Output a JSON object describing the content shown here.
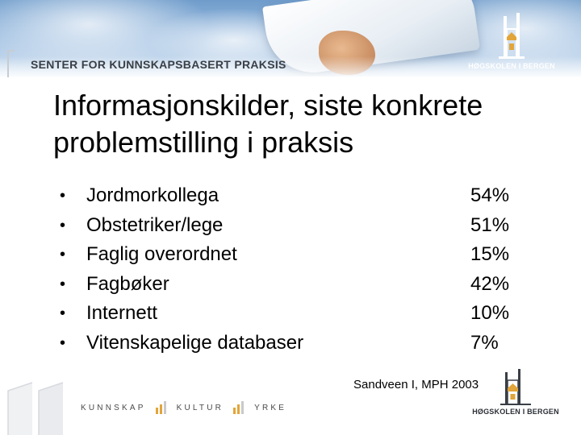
{
  "header": {
    "center_name": "SENTER FOR KUNNSKAPSBASERT PRAKSIS",
    "institution": "HØGSKOLEN I BERGEN",
    "logo_icon": "hib-building-icon"
  },
  "slide": {
    "title_line1": "Informasjonskilder, siste konkrete",
    "title_line2": "problemstilling i praksis",
    "items": [
      {
        "bullet": "•",
        "label": "Jordmorkollega",
        "value": "54%"
      },
      {
        "bullet": "•",
        "label": "Obstetriker/lege",
        "value": "51%"
      },
      {
        "bullet": "•",
        "label": "Faglig overordnet",
        "value": "15%"
      },
      {
        "bullet": "•",
        "label": "Fagbøker",
        "value": "42%"
      },
      {
        "bullet": "•",
        "label": "Internett",
        "value": "10%"
      },
      {
        "bullet": "•",
        "label": "Vitenskapelige databaser",
        "value": "7%"
      }
    ],
    "source": "Sandveen I, MPH 2003"
  },
  "footer": {
    "word1": "KUNNSKAP",
    "word2": "KULTUR",
    "word3": "YRKE",
    "institution": "HØGSKOLEN I BERGEN",
    "accent_color": "#e2a53a"
  }
}
